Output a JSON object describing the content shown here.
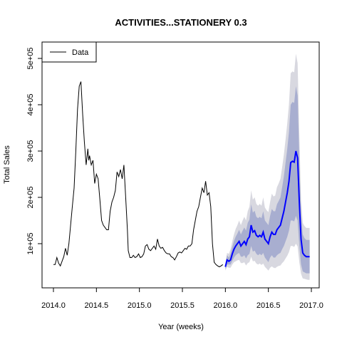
{
  "chart_data": {
    "type": "line",
    "title": "ACTIVITIES...STATIONERY 0.3",
    "xlabel": "Year (weeks)",
    "ylabel": "Total Sales",
    "xlim": [
      2014.0,
      2017.0
    ],
    "ylim": [
      0,
      500000
    ],
    "x_ticks": [
      {
        "value": 2014.0,
        "label": "2014.0"
      },
      {
        "value": 2014.5,
        "label": "2014.5"
      },
      {
        "value": 2015.0,
        "label": "2015.0"
      },
      {
        "value": 2015.5,
        "label": "2015.5"
      },
      {
        "value": 2016.0,
        "label": "2016.0"
      },
      {
        "value": 2016.5,
        "label": "2016.5"
      },
      {
        "value": 2017.0,
        "label": "2017.0"
      }
    ],
    "y_ticks": [
      {
        "value": 100000,
        "label": "1e+05"
      },
      {
        "value": 200000,
        "label": "2e+05"
      },
      {
        "value": 300000,
        "label": "3e+05"
      },
      {
        "value": 400000,
        "label": "4e+05"
      },
      {
        "value": 500000,
        "label": "5e+05"
      }
    ],
    "legend": {
      "position": "top-left",
      "entries": [
        {
          "label": "Data",
          "color": "#000000"
        }
      ]
    },
    "colors": {
      "data": "#000000",
      "forecast": "#0000ff",
      "band_outer": "#d8d8e0",
      "band_inner": "#a8aed0"
    },
    "series": [
      {
        "name": "Data",
        "x": [
          2014.0,
          2014.02,
          2014.04,
          2014.06,
          2014.08,
          2014.1,
          2014.12,
          2014.14,
          2014.16,
          2014.18,
          2014.2,
          2014.22,
          2014.24,
          2014.26,
          2014.28,
          2014.3,
          2014.32,
          2014.34,
          2014.36,
          2014.38,
          2014.4,
          2014.41,
          2014.42,
          2014.44,
          2014.46,
          2014.48,
          2014.5,
          2014.52,
          2014.54,
          2014.56,
          2014.58,
          2014.6,
          2014.62,
          2014.64,
          2014.66,
          2014.68,
          2014.7,
          2014.72,
          2014.74,
          2014.76,
          2014.78,
          2014.8,
          2014.82,
          2014.84,
          2014.86,
          2014.87,
          2014.89,
          2014.91,
          2014.93,
          2014.95,
          2014.97,
          2014.99,
          2015.01,
          2015.03,
          2015.05,
          2015.07,
          2015.09,
          2015.11,
          2015.13,
          2015.15,
          2015.17,
          2015.19,
          2015.21,
          2015.23,
          2015.25,
          2015.27,
          2015.29,
          2015.31,
          2015.33,
          2015.35,
          2015.37,
          2015.39,
          2015.41,
          2015.43,
          2015.45,
          2015.47,
          2015.49,
          2015.51,
          2015.53,
          2015.55,
          2015.57,
          2015.59,
          2015.61,
          2015.63,
          2015.65,
          2015.67,
          2015.69,
          2015.71,
          2015.73,
          2015.75,
          2015.77,
          2015.79,
          2015.81,
          2015.83,
          2015.85,
          2015.87,
          2015.89,
          2015.91,
          2015.93,
          2015.95,
          2015.97
        ],
        "y": [
          55000,
          55000,
          70000,
          58000,
          52000,
          62000,
          72000,
          90000,
          75000,
          100000,
          140000,
          180000,
          220000,
          300000,
          390000,
          440000,
          450000,
          380000,
          320000,
          270000,
          305000,
          280000,
          290000,
          270000,
          280000,
          230000,
          250000,
          240000,
          195000,
          150000,
          140000,
          135000,
          130000,
          130000,
          170000,
          190000,
          200000,
          215000,
          255000,
          245000,
          260000,
          240000,
          270000,
          200000,
          130000,
          85000,
          70000,
          70000,
          75000,
          70000,
          72000,
          78000,
          70000,
          72000,
          78000,
          95000,
          98000,
          88000,
          85000,
          90000,
          95000,
          88000,
          110000,
          95000,
          90000,
          92000,
          85000,
          80000,
          78000,
          78000,
          72000,
          70000,
          65000,
          72000,
          80000,
          82000,
          80000,
          85000,
          90000,
          88000,
          95000,
          95000,
          100000,
          130000,
          150000,
          170000,
          180000,
          200000,
          220000,
          210000,
          235000,
          205000,
          210000,
          180000,
          100000,
          60000,
          55000,
          52000,
          50000,
          52000,
          55000
        ]
      },
      {
        "name": "",
        "x": [
          2016.0,
          2016.02,
          2016.04,
          2016.06,
          2016.08,
          2016.1,
          2016.12,
          2016.14,
          2016.16,
          2016.18,
          2016.2,
          2016.22,
          2016.24,
          2016.26,
          2016.28,
          2016.3,
          2016.32,
          2016.34,
          2016.36,
          2016.38,
          2016.4,
          2016.42,
          2016.44,
          2016.46,
          2016.48,
          2016.5,
          2016.52,
          2016.54,
          2016.56,
          2016.58,
          2016.6,
          2016.62,
          2016.64,
          2016.66,
          2016.68,
          2016.7,
          2016.72,
          2016.74,
          2016.76,
          2016.78,
          2016.8,
          2016.82,
          2016.84,
          2016.86,
          2016.88,
          2016.9,
          2016.92,
          2016.94,
          2016.96,
          2016.98
        ],
        "y": [
          50000,
          65000,
          62000,
          65000,
          78000,
          88000,
          95000,
          100000,
          105000,
          95000,
          100000,
          105000,
          98000,
          110000,
          115000,
          140000,
          125000,
          128000,
          118000,
          115000,
          118000,
          115000,
          125000,
          110000,
          105000,
          100000,
          115000,
          125000,
          120000,
          120000,
          130000,
          135000,
          140000,
          155000,
          170000,
          190000,
          210000,
          235000,
          275000,
          278000,
          276000,
          300000,
          285000,
          190000,
          110000,
          80000,
          75000,
          72000,
          72000,
          72000
        ],
        "lo80": [
          45000,
          55000,
          55000,
          55000,
          63000,
          70000,
          75000,
          78000,
          80000,
          72000,
          72000,
          75000,
          68000,
          75000,
          78000,
          95000,
          83000,
          85000,
          78000,
          75000,
          78000,
          75000,
          80000,
          70000,
          65000,
          60000,
          70000,
          75000,
          70000,
          70000,
          75000,
          78000,
          80000,
          88000,
          95000,
          105000,
          115000,
          128000,
          150000,
          150000,
          148000,
          160000,
          150000,
          95000,
          55000,
          40000,
          38000,
          36000,
          36000,
          36000
        ],
        "hi80": [
          55000,
          75000,
          70000,
          78000,
          93000,
          106000,
          115000,
          122000,
          130000,
          120000,
          128000,
          135000,
          128000,
          145000,
          152000,
          185000,
          167000,
          171000,
          158000,
          155000,
          158000,
          155000,
          170000,
          150000,
          145000,
          140000,
          160000,
          175000,
          170000,
          170000,
          185000,
          192000,
          200000,
          222000,
          245000,
          275000,
          305000,
          342000,
          400000,
          406000,
          404000,
          440000,
          420000,
          285000,
          165000,
          120000,
          112000,
          108000,
          108000,
          108000
        ],
        "lo95": [
          42000,
          50000,
          48000,
          48000,
          55000,
          60000,
          62000,
          64000,
          65000,
          58000,
          58000,
          60000,
          53000,
          58000,
          60000,
          72000,
          62000,
          63000,
          57000,
          55000,
          57000,
          54000,
          57000,
          50000,
          46000,
          42000,
          48000,
          51000,
          48000,
          47000,
          50000,
          52000,
          53000,
          58000,
          62000,
          68000,
          74000,
          82000,
          95000,
          95000,
          93000,
          100000,
          94000,
          60000,
          35000,
          25000,
          24000,
          23000,
          22000,
          22000
        ],
        "hi95": [
          58000,
          80000,
          78000,
          88000,
          105000,
          120000,
          132000,
          140000,
          150000,
          140000,
          150000,
          158000,
          150000,
          170000,
          180000,
          215000,
          195000,
          200000,
          186000,
          182000,
          186000,
          182000,
          200000,
          178000,
          172000,
          168000,
          190000,
          208000,
          202000,
          204000,
          222000,
          230000,
          240000,
          265000,
          292000,
          325000,
          360000,
          402000,
          468000,
          472000,
          470000,
          510000,
          490000,
          335000,
          195000,
          145000,
          138000,
          134000,
          134000,
          134000
        ]
      }
    ]
  }
}
